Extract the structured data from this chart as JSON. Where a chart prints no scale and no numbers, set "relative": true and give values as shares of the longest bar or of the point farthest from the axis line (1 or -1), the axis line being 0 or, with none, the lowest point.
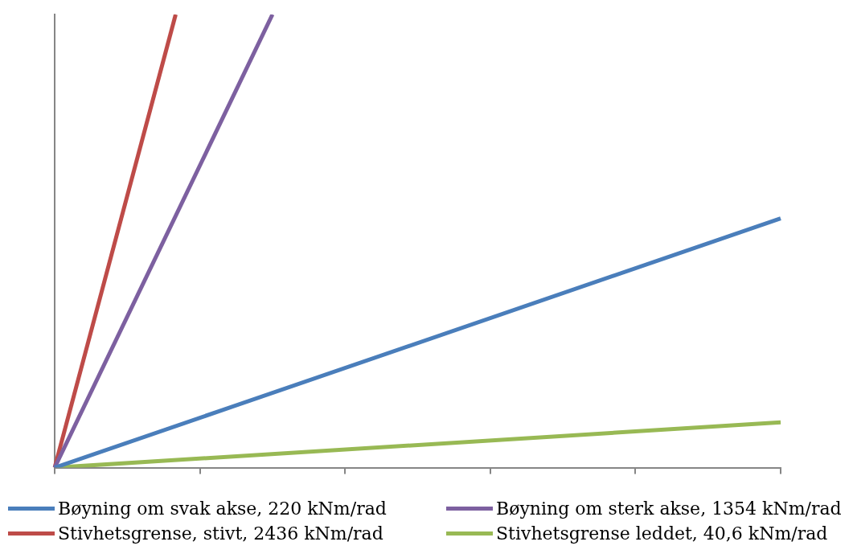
{
  "chart_data": {
    "type": "line",
    "relative": true,
    "legend": "bottom",
    "marker": "none",
    "line_style": "solid",
    "grid": false,
    "categories": [
      null,
      null,
      null,
      null,
      null,
      null,
      null,
      null,
      null,
      null,
      null,
      null,
      null,
      null,
      null,
      null,
      null,
      null,
      null,
      null,
      null,
      null,
      null,
      null,
      null,
      null,
      null,
      null,
      null,
      null,
      null
    ],
    "series": [
      {
        "name": "Bøyning om svak akse, 220 kNm/rad",
        "color": "#4a7ebb",
        "values": [
          0,
          null,
          null,
          null,
          null,
          null,
          null,
          null,
          null,
          null,
          null,
          null,
          null,
          null,
          null,
          null,
          null,
          null,
          null,
          null,
          null,
          null,
          null,
          null,
          null,
          null,
          null,
          null,
          null,
          null,
          0.55
        ]
      },
      {
        "name": "Bøyning om sterk akse, 1354 kNm/rad",
        "color": "#7d60a0",
        "values": [
          0,
          null,
          null,
          null,
          null,
          null,
          null,
          null,
          null,
          1,
          null,
          null,
          null,
          null,
          null,
          null,
          null,
          null,
          null,
          null,
          null,
          null,
          null,
          null,
          null,
          null,
          null,
          null,
          null,
          null,
          null
        ]
      },
      {
        "name": "Stivhetsgrense, stivt, 2436 kNm/rad",
        "color": "#be4b48",
        "values": [
          0,
          null,
          null,
          null,
          null,
          1,
          null,
          null,
          null,
          null,
          null,
          null,
          null,
          null,
          null,
          null,
          null,
          null,
          null,
          null,
          null,
          null,
          null,
          null,
          null,
          null,
          null,
          null,
          null,
          null,
          null
        ]
      },
      {
        "name": "Stivhetsgrense leddet, 40,6 kNm/rad",
        "color": "#98b954",
        "values": [
          0,
          null,
          null,
          null,
          null,
          null,
          null,
          null,
          null,
          null,
          null,
          null,
          null,
          null,
          null,
          null,
          null,
          null,
          null,
          null,
          null,
          null,
          null,
          null,
          null,
          null,
          null,
          null,
          null,
          null,
          0.1
        ]
      }
    ]
  }
}
